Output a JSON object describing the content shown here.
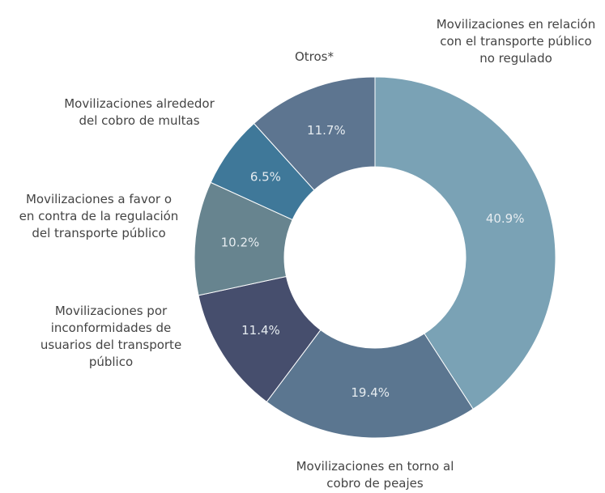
{
  "chart_data": {
    "type": "donut",
    "categories": [
      "Movilizaciones en relación\ncon el transporte público\nno regulado",
      "Movilizaciones en torno al\ncobro de peajes",
      "Movilizaciones por\ninconformidades de\nusuarios del transporte\npúblico",
      "Movilizaciones a favor o\nen contra de la regulación\ndel transporte público",
      "Movilizaciones alrededor\ndel cobro de multas",
      "Otros*"
    ],
    "values": [
      40.9,
      19.4,
      11.4,
      10.2,
      6.5,
      11.7
    ],
    "value_labels": [
      "40.9%",
      "19.4%",
      "11.4%",
      "10.2%",
      "6.5%",
      "11.7%"
    ],
    "colors": [
      "#7aa2b5",
      "#5b7690",
      "#464e6d",
      "#67848f",
      "#3f7899",
      "#5d7590"
    ]
  }
}
